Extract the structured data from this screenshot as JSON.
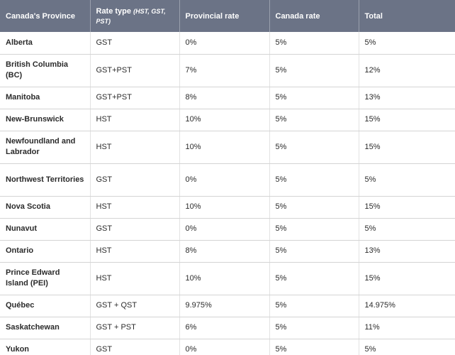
{
  "headers": {
    "province": "Canada's Province",
    "rate_type": "Rate type ",
    "rate_type_hint": "(HST, GST, PST)",
    "provincial_rate": "Provincial rate",
    "canada_rate": "Canada rate",
    "total": "Total"
  },
  "rows": [
    {
      "province": "Alberta",
      "type": "GST",
      "provincial": "0%",
      "canada": "5%",
      "total": "5%"
    },
    {
      "province": "British Columbia (BC)",
      "type": "GST+PST",
      "provincial": "7%",
      "canada": "5%",
      "total": "12%"
    },
    {
      "province": "Manitoba",
      "type": "GST+PST",
      "provincial": "8%",
      "canada": "5%",
      "total": "13%"
    },
    {
      "province": "New-Brunswick",
      "type": "HST",
      "provincial": "10%",
      "canada": "5%",
      "total": "15%"
    },
    {
      "province": "Newfoundland and Labrador",
      "type": "HST",
      "provincial": "10%",
      "canada": "5%",
      "total": "15%"
    },
    {
      "province": "Northwest Territories",
      "type": "GST",
      "provincial": "0%",
      "canada": "5%",
      "total": "5%"
    },
    {
      "province": "Nova Scotia",
      "type": "HST",
      "provincial": "10%",
      "canada": "5%",
      "total": "15%"
    },
    {
      "province": "Nunavut",
      "type": "GST",
      "provincial": "0%",
      "canada": "5%",
      "total": "5%"
    },
    {
      "province": "Ontario",
      "type": "HST",
      "provincial": "8%",
      "canada": "5%",
      "total": "13%"
    },
    {
      "province": "Prince Edward Island (PEI)",
      "type": "HST",
      "provincial": "10%",
      "canada": "5%",
      "total": "15%"
    },
    {
      "province": "Québec",
      "type": "GST + QST",
      "provincial": "9.975%",
      "canada": "5%",
      "total": "14.975%"
    },
    {
      "province": "Saskatchewan",
      "type": "GST + PST",
      "provincial": "6%",
      "canada": "5%",
      "total": "11%"
    },
    {
      "province": "Yukon",
      "type": "GST",
      "provincial": "0%",
      "canada": "5%",
      "total": "5%"
    }
  ]
}
